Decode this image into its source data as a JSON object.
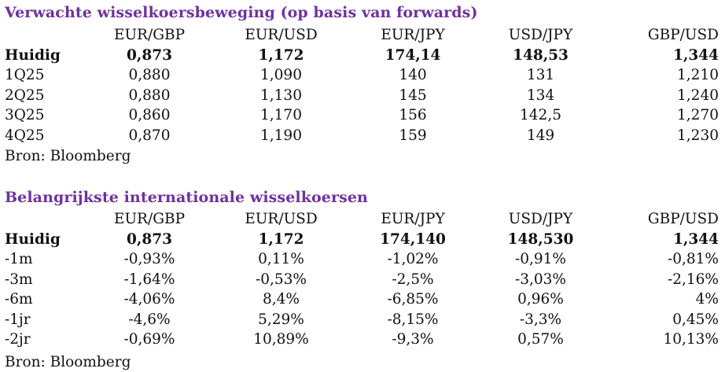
{
  "table1": {
    "title": "Verwachte wisselkoersbeweging (op basis van forwards)",
    "headers": [
      "",
      "EUR/GBP",
      "EUR/USD",
      "EUR/JPY",
      "USD/JPY",
      "GBP/USD"
    ],
    "rows": [
      [
        "Huidig",
        "0,873",
        "1,172",
        "174,14",
        "148,53",
        "1,344"
      ],
      [
        "1Q25",
        "0,880",
        "1,090",
        "140",
        "131",
        "1,210"
      ],
      [
        "2Q25",
        "0,880",
        "1,130",
        "145",
        "134",
        "1,240"
      ],
      [
        "3Q25",
        "0,860",
        "1,170",
        "156",
        "142,5",
        "1,270"
      ],
      [
        "4Q25",
        "0,870",
        "1,190",
        "159",
        "149",
        "1,230"
      ]
    ],
    "source": "Bron: Bloomberg"
  },
  "table2": {
    "title": "Belangrijkste internationale wisselkoersen",
    "headers": [
      "",
      "EUR/GBP",
      "EUR/USD",
      "EUR/JPY",
      "USD/JPY",
      "GBP/USD"
    ],
    "rows": [
      [
        "Huidig",
        "0,873",
        "1,172",
        "174,140",
        "148,530",
        "1,344"
      ],
      [
        "-1m",
        "-0,93%",
        "0,11%",
        "-1,02%",
        "-0,91%",
        "-0,81%"
      ],
      [
        "-3m",
        "-1,64%",
        "-0,53%",
        "-2,5%",
        "-3,03%",
        "-2,16%"
      ],
      [
        "-6m",
        "-4,06%",
        "8,4%",
        "-6,85%",
        "0,96%",
        "4%"
      ],
      [
        "-1jr",
        "-4,6%",
        "5,29%",
        "-8,15%",
        "-3,3%",
        "0,45%"
      ],
      [
        "-2jr",
        "-0,69%",
        "10,89%",
        "-9,3%",
        "0,57%",
        "10,13%"
      ]
    ],
    "source": "Bron: Bloomberg"
  },
  "colors": {
    "title": "#7030a0",
    "text": "#111111"
  }
}
